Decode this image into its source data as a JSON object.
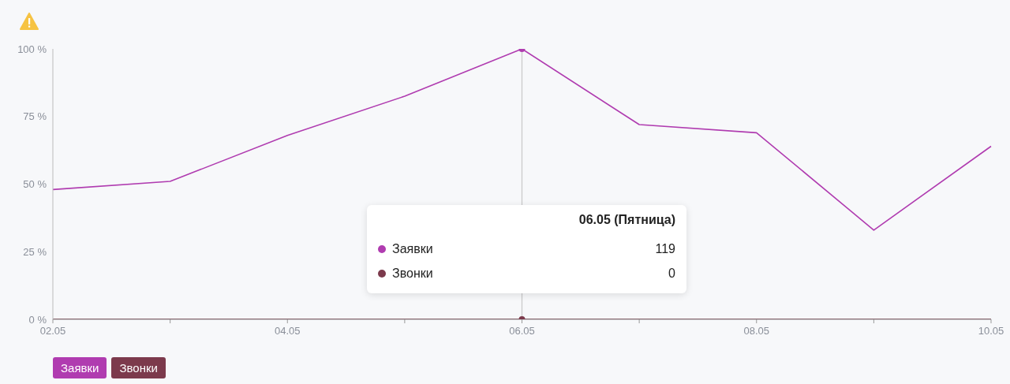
{
  "chart_data": {
    "type": "line",
    "categories": [
      "02.05",
      null,
      "04.05",
      null,
      "06.05",
      null,
      "08.05",
      null,
      "10.05"
    ],
    "series": [
      {
        "name": "Заявки",
        "color": "#b03cb0",
        "values": [
          48,
          51,
          68,
          82.5,
          100,
          72,
          69,
          33,
          64
        ]
      },
      {
        "name": "Звонки",
        "color": "#7c3a4c",
        "values": [
          0,
          0,
          0,
          0,
          0,
          0,
          0,
          0,
          0
        ]
      }
    ],
    "ylim": [
      0,
      100
    ],
    "yticks": [
      {
        "value": 0,
        "label": "0 %"
      },
      {
        "value": 25,
        "label": "25 %"
      },
      {
        "value": 50,
        "label": "50 %"
      },
      {
        "value": 75,
        "label": "75 %"
      },
      {
        "value": 100,
        "label": "100 %"
      }
    ],
    "ref_lines": [
      {
        "axis": "x",
        "value": "06.05",
        "color": "#c8c8c8"
      }
    ],
    "annotations": [
      "06.05 (Пятница)",
      "119",
      "0"
    ],
    "legend": "bottom left",
    "grid": false
  }
}
